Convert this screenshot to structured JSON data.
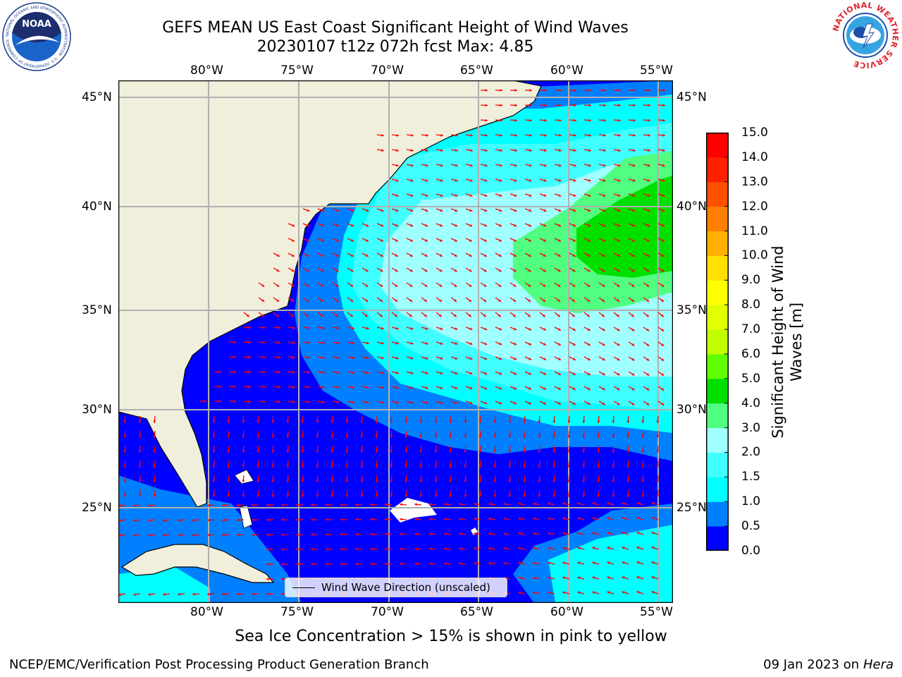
{
  "header": {
    "title_line1": "GEFS MEAN US East Coast Significant Height of Wind Waves",
    "title_line2": "20230107 t12z 072h fcst   Max: 4.85"
  },
  "logos": {
    "left": "NOAA",
    "left_ring_text": "NATIONAL OCEANIC AND ATMOSPHERIC ADMINISTRATION · U.S. DEPARTMENT OF COMMERCE",
    "right_ring_text": "NATIONAL WEATHER SERVICE"
  },
  "map": {
    "lon_labels": [
      "80°W",
      "75°W",
      "70°W",
      "65°W",
      "60°W",
      "55°W"
    ],
    "lat_labels": [
      "45°N",
      "40°N",
      "35°N",
      "30°N",
      "25°N"
    ],
    "legend_label": "Wind Wave Direction (unscaled)"
  },
  "colorbar": {
    "label": "Significant Height of Wind Waves [m]",
    "ticks": [
      "15.0",
      "14.0",
      "13.0",
      "12.0",
      "11.0",
      "10.0",
      "9.0",
      "8.0",
      "7.0",
      "6.0",
      "5.0",
      "4.0",
      "3.0",
      "2.0",
      "1.5",
      "1.0",
      "0.5",
      "0.0"
    ],
    "colors": [
      "#0000ff",
      "#0080ff",
      "#00ffff",
      "#40ffff",
      "#a0ffff",
      "#50ff80",
      "#00e000",
      "#60ff00",
      "#c0ff00",
      "#e0ff00",
      "#ffff00",
      "#ffe000",
      "#ffb000",
      "#ff8000",
      "#ff5000",
      "#ff2000",
      "#ff0000"
    ]
  },
  "notes": {
    "sea_ice": "Sea Ice Concentration > 15% is shown in pink to yellow",
    "footer_left": "NCEP/EMC/Verification Post Processing Product Generation Branch",
    "footer_date": "09 Jan 2023 on ",
    "footer_machine": "Hera"
  }
}
